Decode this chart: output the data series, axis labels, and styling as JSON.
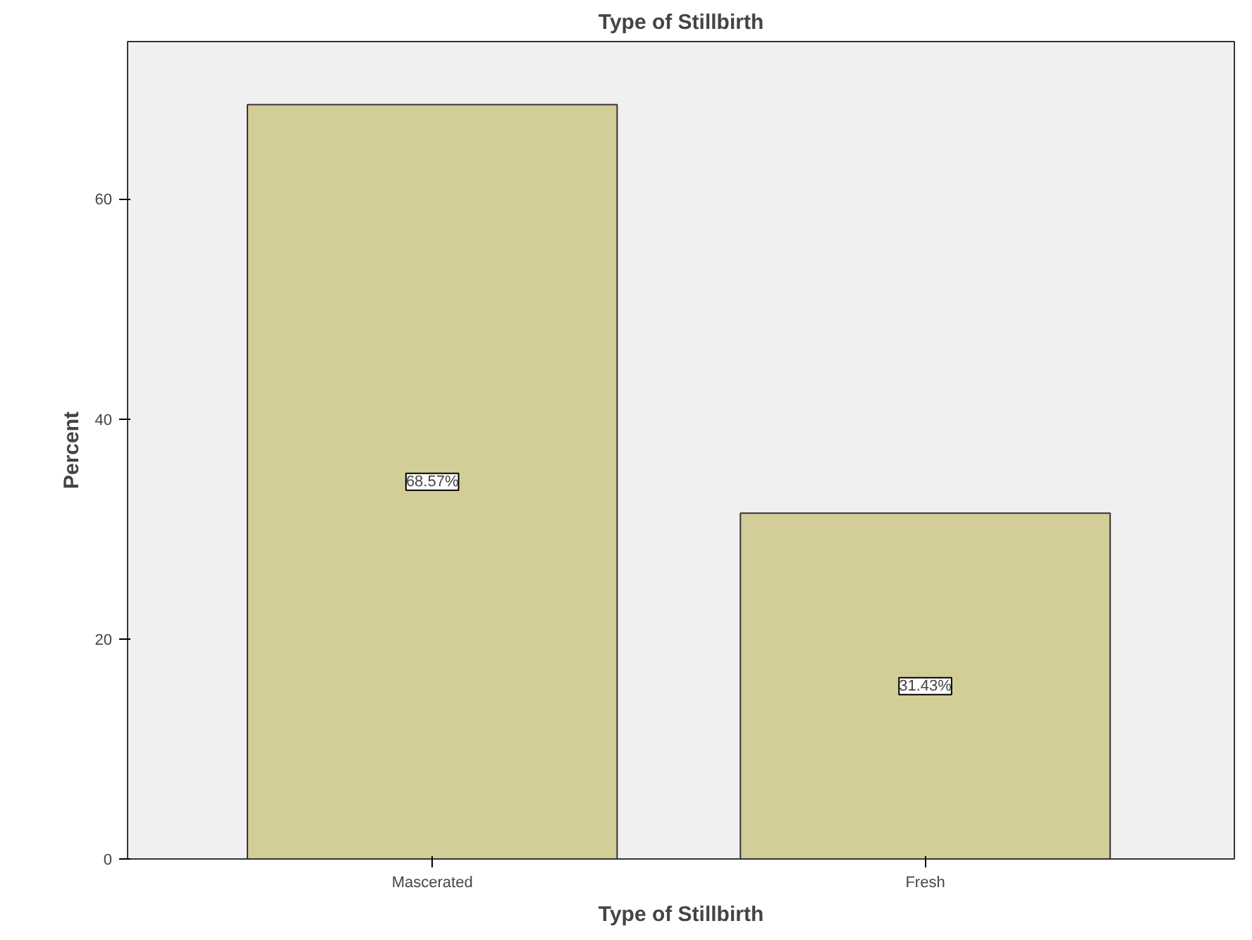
{
  "chart_data": {
    "type": "bar",
    "title": "Type of Stillbirth",
    "xlabel": "Type of Stillbirth",
    "ylabel": "Percent",
    "categories": [
      "Mascerated",
      "Fresh"
    ],
    "values": [
      68.57,
      31.43
    ],
    "value_labels": [
      "68.57%",
      "31.43%"
    ],
    "color": "#d3ce98",
    "ylim": [
      0,
      74.3
    ],
    "yticks": [
      0,
      20,
      40,
      60
    ]
  }
}
